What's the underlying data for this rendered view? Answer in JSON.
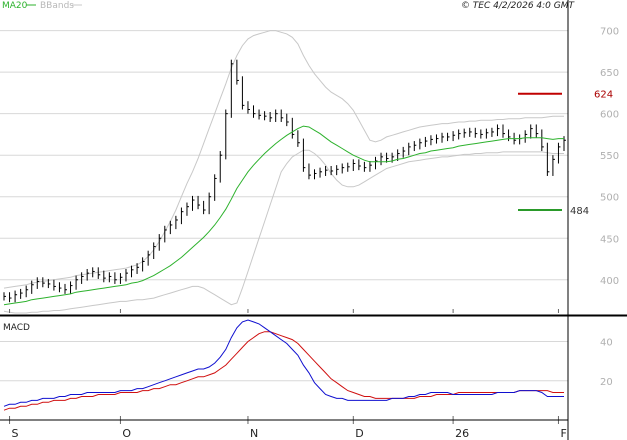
{
  "header": {
    "ma_label": "MA20",
    "bb_label": "BBands",
    "copyright": "© TEC 4/2/2026 4:0 GMT"
  },
  "macd_label": "MACD",
  "colors": {
    "price": "#000000",
    "ma20": "#2db22d",
    "bbands": "#c8c8c8",
    "resistance": "#c00000",
    "support": "#2a9a2a",
    "macd": "#1010d0",
    "signal": "#d01010",
    "grid": "#d8d8d8",
    "axis_text": "#b0b0b0"
  },
  "chart_data": [
    {
      "type": "line",
      "panel": "price",
      "ylim": [
        360,
        720
      ],
      "yticks": [
        400,
        450,
        500,
        550,
        600,
        650,
        700
      ],
      "x_labels": [
        {
          "label": "S",
          "i": 1
        },
        {
          "label": "O",
          "i": 21
        },
        {
          "label": "N",
          "i": 44
        },
        {
          "label": "D",
          "i": 63
        },
        {
          "label": "26",
          "i": 81
        },
        {
          "label": "F",
          "i": 100
        }
      ],
      "x_count": 102,
      "levels": [
        {
          "name": "resistance",
          "value": 624,
          "label": "624"
        },
        {
          "name": "support",
          "value": 484,
          "label": "484"
        }
      ],
      "series": [
        {
          "key": "close",
          "values": [
            380,
            378,
            382,
            384,
            388,
            394,
            398,
            396,
            395,
            392,
            390,
            388,
            393,
            400,
            404,
            408,
            410,
            406,
            402,
            404,
            400,
            403,
            408,
            412,
            415,
            422,
            430,
            440,
            450,
            460,
            466,
            472,
            482,
            488,
            496,
            490,
            484,
            500,
            522,
            550,
            600,
            660,
            640,
            610,
            605,
            600,
            598,
            597,
            595,
            600,
            595,
            590,
            575,
            565,
            535,
            526,
            528,
            530,
            532,
            531,
            533,
            535,
            536,
            540,
            537,
            535,
            538,
            543,
            548,
            546,
            548,
            552,
            555,
            560,
            562,
            565,
            567,
            569,
            570,
            572,
            572,
            574,
            576,
            577,
            578,
            576,
            575,
            577,
            578,
            582,
            576,
            572,
            568,
            570,
            575,
            582,
            576,
            560,
            530,
            545,
            560,
            568
          ]
        },
        {
          "key": "ma20",
          "values": [
            370,
            371,
            372,
            373,
            374,
            376,
            377,
            378,
            379,
            380,
            381,
            382,
            383,
            385,
            386,
            387,
            388,
            389,
            390,
            391,
            392,
            393,
            394,
            396,
            397,
            399,
            402,
            405,
            409,
            413,
            417,
            422,
            427,
            433,
            439,
            445,
            451,
            458,
            466,
            475,
            485,
            497,
            510,
            520,
            530,
            538,
            545,
            552,
            558,
            564,
            569,
            574,
            578,
            582,
            585,
            584,
            580,
            576,
            571,
            566,
            562,
            558,
            554,
            550,
            547,
            544,
            542,
            542,
            542,
            542,
            543,
            545,
            546,
            548,
            550,
            552,
            553,
            555,
            556,
            557,
            558,
            559,
            561,
            562,
            563,
            564,
            565,
            566,
            567,
            568,
            569,
            570,
            570,
            570,
            571,
            571,
            571,
            571,
            570,
            569,
            570,
            570
          ]
        },
        {
          "key": "bb_upper",
          "values": [
            390,
            391,
            392,
            393,
            394,
            396,
            397,
            398,
            399,
            400,
            401,
            402,
            403,
            405,
            406,
            407,
            408,
            409,
            410,
            411,
            412,
            413,
            414,
            416,
            418,
            422,
            428,
            436,
            446,
            458,
            470,
            484,
            500,
            516,
            530,
            546,
            564,
            582,
            600,
            618,
            636,
            655,
            670,
            682,
            690,
            694,
            696,
            698,
            700,
            700,
            698,
            696,
            692,
            684,
            670,
            658,
            648,
            640,
            632,
            626,
            622,
            618,
            612,
            604,
            592,
            580,
            568,
            566,
            568,
            572,
            574,
            576,
            578,
            580,
            582,
            584,
            585,
            586,
            587,
            588,
            588,
            589,
            590,
            590,
            591,
            591,
            592,
            592,
            592,
            593,
            593,
            594,
            594,
            594,
            595,
            595,
            595,
            595,
            596,
            597,
            597,
            597
          ]
        },
        {
          "key": "bb_lower",
          "values": [
            362,
            361,
            360,
            360,
            360,
            361,
            361,
            362,
            362,
            363,
            363,
            364,
            365,
            366,
            367,
            368,
            369,
            370,
            371,
            372,
            373,
            374,
            374,
            375,
            376,
            376,
            377,
            378,
            380,
            382,
            384,
            386,
            388,
            390,
            392,
            392,
            390,
            386,
            382,
            378,
            374,
            370,
            372,
            390,
            410,
            430,
            450,
            470,
            490,
            510,
            530,
            540,
            548,
            552,
            556,
            556,
            552,
            546,
            538,
            528,
            520,
            514,
            512,
            512,
            514,
            518,
            522,
            526,
            530,
            534,
            536,
            538,
            540,
            542,
            543,
            544,
            545,
            546,
            547,
            548,
            548,
            549,
            550,
            551,
            551,
            552,
            552,
            553,
            553,
            553,
            554,
            554,
            554,
            554,
            554,
            554,
            554,
            554,
            553,
            552,
            552,
            552
          ]
        }
      ]
    },
    {
      "type": "line",
      "panel": "macd",
      "ylim": [
        0,
        52
      ],
      "yticks": [
        20,
        40
      ],
      "series": [
        {
          "key": "macd",
          "values": [
            7,
            8,
            8,
            9,
            9,
            10,
            10,
            11,
            11,
            11,
            12,
            12,
            13,
            13,
            13,
            14,
            14,
            14,
            14,
            14,
            14,
            15,
            15,
            15,
            16,
            16,
            17,
            18,
            19,
            20,
            21,
            22,
            23,
            24,
            25,
            26,
            26,
            27,
            29,
            32,
            36,
            42,
            47,
            50,
            51,
            50,
            49,
            47,
            45,
            43,
            41,
            39,
            36,
            33,
            28,
            24,
            19,
            16,
            13,
            12,
            11,
            11,
            10,
            10,
            10,
            10,
            10,
            10,
            10,
            10,
            11,
            11,
            11,
            12,
            12,
            13,
            13,
            14,
            14,
            14,
            14,
            13,
            13,
            13,
            13,
            13,
            13,
            13,
            13,
            14,
            14,
            14,
            14,
            15,
            15,
            15,
            15,
            14,
            12,
            12,
            12,
            12
          ]
        },
        {
          "key": "signal",
          "values": [
            5,
            6,
            6,
            7,
            7,
            8,
            8,
            9,
            9,
            10,
            10,
            10,
            11,
            11,
            12,
            12,
            12,
            13,
            13,
            13,
            13,
            14,
            14,
            14,
            14,
            15,
            15,
            16,
            16,
            17,
            18,
            18,
            19,
            20,
            21,
            22,
            22,
            23,
            24,
            26,
            28,
            31,
            34,
            37,
            40,
            42,
            44,
            45,
            45,
            44,
            43,
            42,
            41,
            39,
            36,
            33,
            30,
            27,
            24,
            21,
            19,
            17,
            15,
            14,
            13,
            12,
            12,
            11,
            11,
            11,
            11,
            11,
            11,
            11,
            11,
            12,
            12,
            12,
            13,
            13,
            13,
            13,
            14,
            14,
            14,
            14,
            14,
            14,
            14,
            14,
            14,
            14,
            14,
            15,
            15,
            15,
            15,
            15,
            15,
            14,
            14,
            14
          ]
        }
      ]
    }
  ]
}
